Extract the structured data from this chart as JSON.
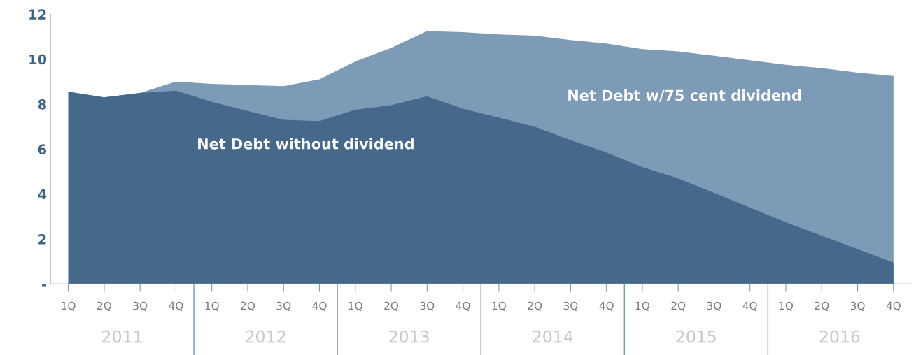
{
  "chart_data": {
    "type": "area",
    "categories": [
      "1Q",
      "2Q",
      "3Q",
      "4Q",
      "1Q",
      "2Q",
      "3Q",
      "4Q",
      "1Q",
      "2Q",
      "3Q",
      "4Q",
      "1Q",
      "2Q",
      "3Q",
      "4Q",
      "1Q",
      "2Q",
      "3Q",
      "4Q",
      "1Q",
      "2Q",
      "3Q",
      "4Q"
    ],
    "series": [
      {
        "name": "Net Debt w/75 cent dividend",
        "color": "#7d9bb6",
        "values": [
          8.55,
          8.3,
          8.5,
          9.0,
          8.9,
          8.85,
          8.8,
          9.1,
          9.9,
          10.5,
          11.25,
          11.2,
          11.1,
          11.05,
          10.85,
          10.7,
          10.45,
          10.35,
          10.15,
          9.95,
          9.75,
          9.6,
          9.4,
          9.25
        ]
      },
      {
        "name": "Net Debt without dividend",
        "color": "#46698b",
        "values": [
          8.55,
          8.3,
          8.5,
          8.6,
          8.1,
          7.7,
          7.3,
          7.25,
          7.75,
          7.95,
          8.35,
          7.8,
          7.4,
          7.0,
          6.4,
          5.85,
          5.2,
          4.7,
          4.05,
          3.4,
          2.75,
          2.15,
          1.55,
          0.95
        ]
      }
    ],
    "ylim": [
      0,
      12
    ],
    "yticks": [
      {
        "value": 0,
        "label": "-"
      },
      2,
      4,
      6,
      8,
      10,
      12
    ],
    "annotations": [
      "2011",
      "2012",
      "2013",
      "2014",
      "2015",
      "2016"
    ],
    "grid": false,
    "legend": false
  }
}
